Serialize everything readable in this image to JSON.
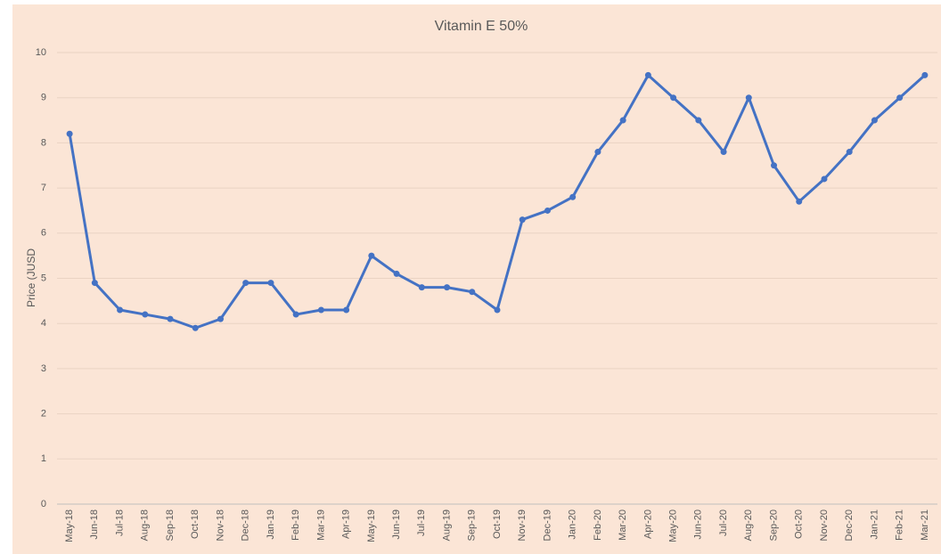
{
  "chart_data": {
    "type": "line",
    "title": "Vitamin E 50%",
    "ylabel": "Price (JUSD",
    "categories": [
      "May-18",
      "Jun-18",
      "Jul-18",
      "Aug-18",
      "Sep-18",
      "Oct-18",
      "Nov-18",
      "Dec-18",
      "Jan-19",
      "Feb-19",
      "Mar-19",
      "Apr-19",
      "May-19",
      "Jun-19",
      "Jul-19",
      "Aug-19",
      "Sep-19",
      "Oct-19",
      "Nov-19",
      "Dec-19",
      "Jan-20",
      "Feb-20",
      "Mar-20",
      "Apr-20",
      "May-20",
      "Jun-20",
      "Jul-20",
      "Aug-20",
      "Sep-20",
      "Oct-20",
      "Nov-20",
      "Dec-20",
      "Jan-21",
      "Feb-21",
      "Mar-21"
    ],
    "values": [
      8.2,
      4.9,
      4.3,
      4.2,
      4.1,
      3.9,
      4.1,
      4.9,
      4.9,
      4.2,
      4.3,
      4.3,
      5.5,
      5.1,
      4.8,
      4.8,
      4.7,
      4.3,
      6.3,
      6.5,
      6.8,
      7.8,
      8.5,
      9.5,
      9.0,
      8.5,
      7.8,
      9.0,
      7.5,
      6.7,
      7.2,
      7.8,
      8.5,
      9.0,
      9.5
    ],
    "color": "#4472c4",
    "ylim": [
      0,
      10
    ],
    "yticks": [
      0,
      1,
      2,
      3,
      4,
      5,
      6,
      7,
      8,
      9,
      10
    ],
    "grid": true
  }
}
